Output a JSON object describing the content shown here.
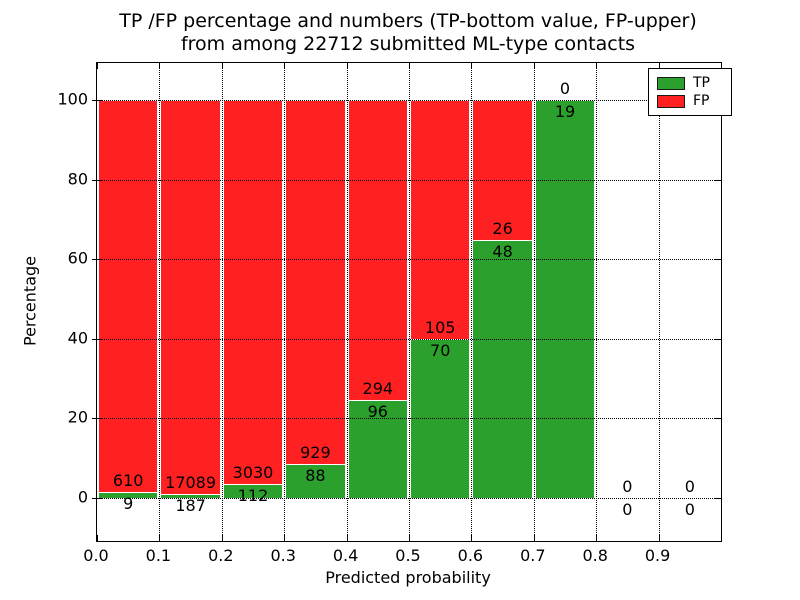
{
  "title": {
    "line1": "TP /FP percentage and numbers (TP-bottom value, FP-upper)",
    "line2": "from among 22712 submitted ML-type contacts"
  },
  "axes": {
    "xlabel": "Predicted probability",
    "ylabel": "Percentage",
    "x_tick_labels": [
      "0.0",
      "0.1",
      "0.2",
      "0.3",
      "0.4",
      "0.5",
      "0.6",
      "0.7",
      "0.8",
      "0.9"
    ],
    "y_tick_labels": [
      "0",
      "20",
      "40",
      "60",
      "80",
      "100"
    ],
    "y_tick_values": [
      0,
      20,
      40,
      60,
      80,
      100
    ]
  },
  "legend": {
    "items": [
      {
        "label": "TP",
        "color": "#2ca02c"
      },
      {
        "label": "FP",
        "color": "#ff2121"
      }
    ]
  },
  "colors": {
    "tp": "#2ca02c",
    "fp": "#ff2121",
    "bar_edge": "#ffffff",
    "grid": "#000000"
  },
  "chart_data": {
    "type": "bar",
    "stacked": true,
    "title": "TP /FP percentage and numbers (TP-bottom value, FP-upper) from among 22712 submitted ML-type contacts",
    "xlabel": "Predicted probability",
    "ylabel": "Percentage",
    "categories": [
      "0.0-0.1",
      "0.1-0.2",
      "0.2-0.3",
      "0.3-0.4",
      "0.4-0.5",
      "0.5-0.6",
      "0.6-0.7",
      "0.7-0.8",
      "0.8-0.9",
      "0.9-1.0"
    ],
    "bin_edges": [
      0.0,
      0.1,
      0.2,
      0.3,
      0.4,
      0.5,
      0.6,
      0.7,
      0.8,
      0.9,
      1.0
    ],
    "series": [
      {
        "name": "TP",
        "counts": [
          9,
          187,
          112,
          88,
          96,
          70,
          48,
          19,
          0,
          0
        ],
        "color": "#2ca02c"
      },
      {
        "name": "FP",
        "counts": [
          610,
          17089,
          3030,
          929,
          294,
          105,
          26,
          0,
          0,
          0
        ],
        "color": "#ff2121"
      }
    ],
    "tp_percent": [
      1.45,
      1.08,
      3.56,
      8.65,
      24.62,
      40.0,
      64.86,
      100.0,
      null,
      null
    ],
    "total_contacts": 22712,
    "xlim": [
      0.0,
      1.0
    ],
    "ylim": [
      -10.8,
      109.3
    ],
    "grid": true,
    "grid_style": "dotted",
    "legend_position": "upper right"
  }
}
